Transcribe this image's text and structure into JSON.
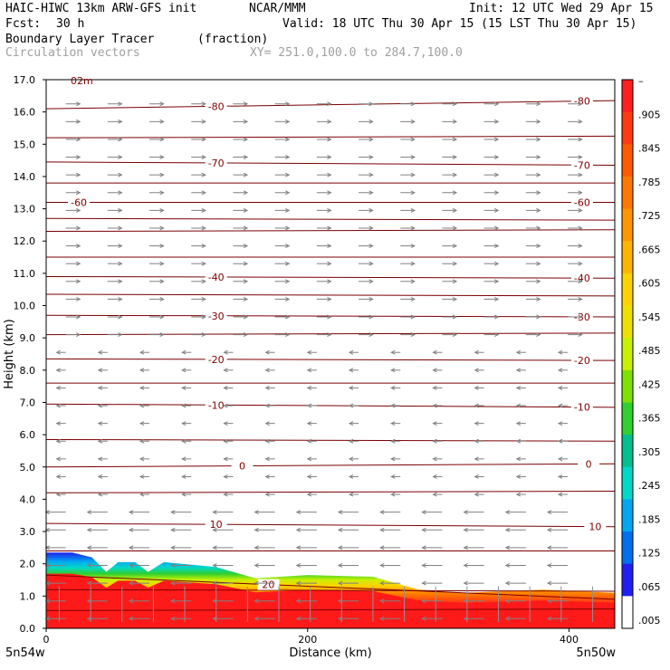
{
  "header": {
    "model": "HAIC-HIWC 13km ARW-GFS init",
    "org": "NCAR/MMM",
    "init": "Init: 12 UTC Wed 29 Apr 15",
    "fcst_label": "Fcst:",
    "fcst_value": "30 h",
    "valid": "Valid: 18 UTC Thu 30 Apr 15 (15 LST Thu 30 Apr 15)",
    "field": "Boundary Layer Tracer",
    "field_units": "(fraction)",
    "vectors": "Circulation vectors",
    "xy": "XY= 251.0,100.0 to 284.7,100.0"
  },
  "chart_data": {
    "type": "area",
    "xlabel": "Distance (km)",
    "ylabel": "Height (km)",
    "xlim": [
      0,
      435
    ],
    "ylim": [
      0,
      17
    ],
    "x_ticks": [
      0,
      200,
      400
    ],
    "y_ticks": [
      "0.0",
      "1.0",
      "2.0",
      "3.0",
      "4.0",
      "5.0",
      "6.0",
      "7.0",
      "8.0",
      "9.0",
      "10.0",
      "11.0",
      "12.0",
      "13.0",
      "14.0",
      "15.0",
      "16.0",
      "17.0"
    ],
    "x_end_labels": {
      "left": "5n54w",
      "right": "5n50w"
    },
    "top_left_fragment": "02m",
    "colorbar": {
      "labels": [
        "–",
        ".905",
        ".845",
        ".785",
        ".725",
        ".665",
        ".605",
        ".545",
        ".485",
        ".425",
        ".365",
        ".305",
        ".245",
        ".185",
        ".125",
        ".065",
        ".005"
      ],
      "colors": [
        "#ff2020",
        "#ff3a10",
        "#ff5a00",
        "#ff7800",
        "#ff9600",
        "#ffb400",
        "#ffd200",
        "#f0e000",
        "#c8f000",
        "#80e000",
        "#30d030",
        "#00c090",
        "#00d8c8",
        "#00a8f0",
        "#0070f0",
        "#2020f0",
        "#ffffff"
      ]
    },
    "tracer_top_km": [
      {
        "x": 0,
        "y": 2.35
      },
      {
        "x": 20,
        "y": 2.35
      },
      {
        "x": 35,
        "y": 2.2
      },
      {
        "x": 46,
        "y": 1.75
      },
      {
        "x": 55,
        "y": 2.05
      },
      {
        "x": 68,
        "y": 2.05
      },
      {
        "x": 78,
        "y": 1.75
      },
      {
        "x": 90,
        "y": 2.05
      },
      {
        "x": 130,
        "y": 1.9
      },
      {
        "x": 160,
        "y": 1.55
      },
      {
        "x": 200,
        "y": 1.65
      },
      {
        "x": 250,
        "y": 1.6
      },
      {
        "x": 285,
        "y": 1.2
      },
      {
        "x": 320,
        "y": 1.1
      },
      {
        "x": 380,
        "y": 1.2
      },
      {
        "x": 435,
        "y": 1.1
      }
    ],
    "temperature_contours": [
      {
        "label": "-80",
        "y_left": 16.1,
        "y_right": 16.35,
        "label_x": [
          130,
          410
        ]
      },
      {
        "label": "-70",
        "y_left": 14.45,
        "y_right": 14.35,
        "label_x": [
          130,
          410
        ]
      },
      {
        "label": "-60",
        "y_left": 13.2,
        "y_right": 13.2,
        "label_x": [
          25,
          410
        ]
      },
      {
        "label": "-40",
        "y_left": 10.9,
        "y_right": 10.85,
        "label_x": [
          130,
          410
        ]
      },
      {
        "label": "-30",
        "y_left": 9.7,
        "y_right": 9.65,
        "label_x": [
          130,
          410
        ]
      },
      {
        "label": "-20",
        "y_left": 8.35,
        "y_right": 8.3,
        "label_x": [
          130,
          410
        ]
      },
      {
        "label": "-10",
        "y_left": 6.95,
        "y_right": 6.85,
        "label_x": [
          130,
          410
        ]
      },
      {
        "label": "0",
        "y_left": 5.0,
        "y_right": 5.1,
        "label_x": [
          150,
          415
        ]
      },
      {
        "label": "10",
        "y_left": 3.25,
        "y_right": 3.15,
        "label_x": [
          130,
          420
        ]
      },
      {
        "label": "20",
        "y_left": 1.65,
        "y_right": 0.9,
        "label_x": [
          170
        ]
      }
    ],
    "extra_contours_km": [
      15.2,
      13.8,
      12.7,
      12.3,
      11.5,
      10.35,
      9.1,
      7.6,
      5.85,
      4.2,
      2.4,
      1.2,
      0.55
    ],
    "grid": false,
    "legend": "right colorbar"
  }
}
